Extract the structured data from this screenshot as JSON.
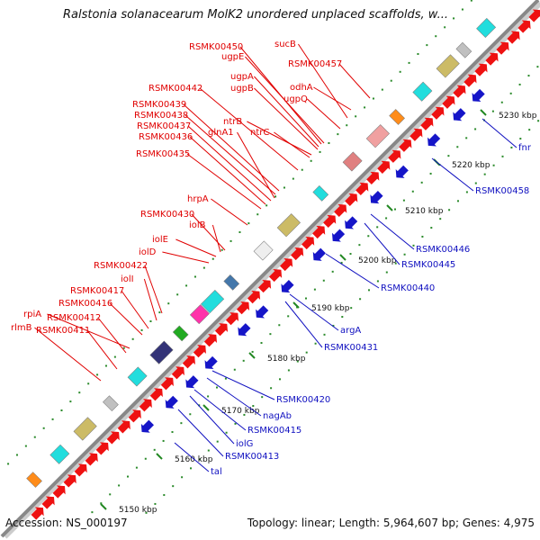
{
  "title": "Ralstonia solanacearum MolK2 unordered unplaced scaffolds, w...",
  "accession_label": "Accession: NS_000197",
  "topology_label": "Topology: linear; Length: 5,964,607 bp; Genes: 4,975",
  "colors": {
    "forward_gene": "#ee1111",
    "reverse_gene": "#1515c8",
    "backbone": "#888888",
    "tick": "#228822",
    "forward_label": "#e00000",
    "reverse_label": "#1010c0"
  },
  "scale_ticks": [
    "5150 kbp",
    "5160 kbp",
    "5170 kbp",
    "5180 kbp",
    "5190 kbp",
    "5200 kbp",
    "5210 kbp",
    "5220 kbp",
    "5230 kbp"
  ],
  "forward_gene_labels": [
    "RSMK00450",
    "sucB",
    "ugpE",
    "RSMK00457",
    "ugpA",
    "odhA",
    "RSMK00442",
    "ugpB",
    "ugpQ",
    "RSMK00439",
    "RSMK00438",
    "ntrB",
    "RSMK00437",
    "glnA1",
    "ntrC",
    "RSMK00436",
    "RSMK00435",
    "hrpA",
    "RSMK00430",
    "iolB",
    "iolE",
    "iolD",
    "RSMK00422",
    "iolI",
    "RSMK00417",
    "RSMK00416",
    "rpiA",
    "RSMK00412",
    "rlmB",
    "RSMK00411"
  ],
  "reverse_gene_labels": [
    "fnr",
    "RSMK00458",
    "RSMK00446",
    "RSMK00445",
    "RSMK00440",
    "argA",
    "RSMK00431",
    "RSMK00420",
    "nagAb",
    "RSMK00415",
    "iolG",
    "RSMK00413",
    "tal"
  ]
}
